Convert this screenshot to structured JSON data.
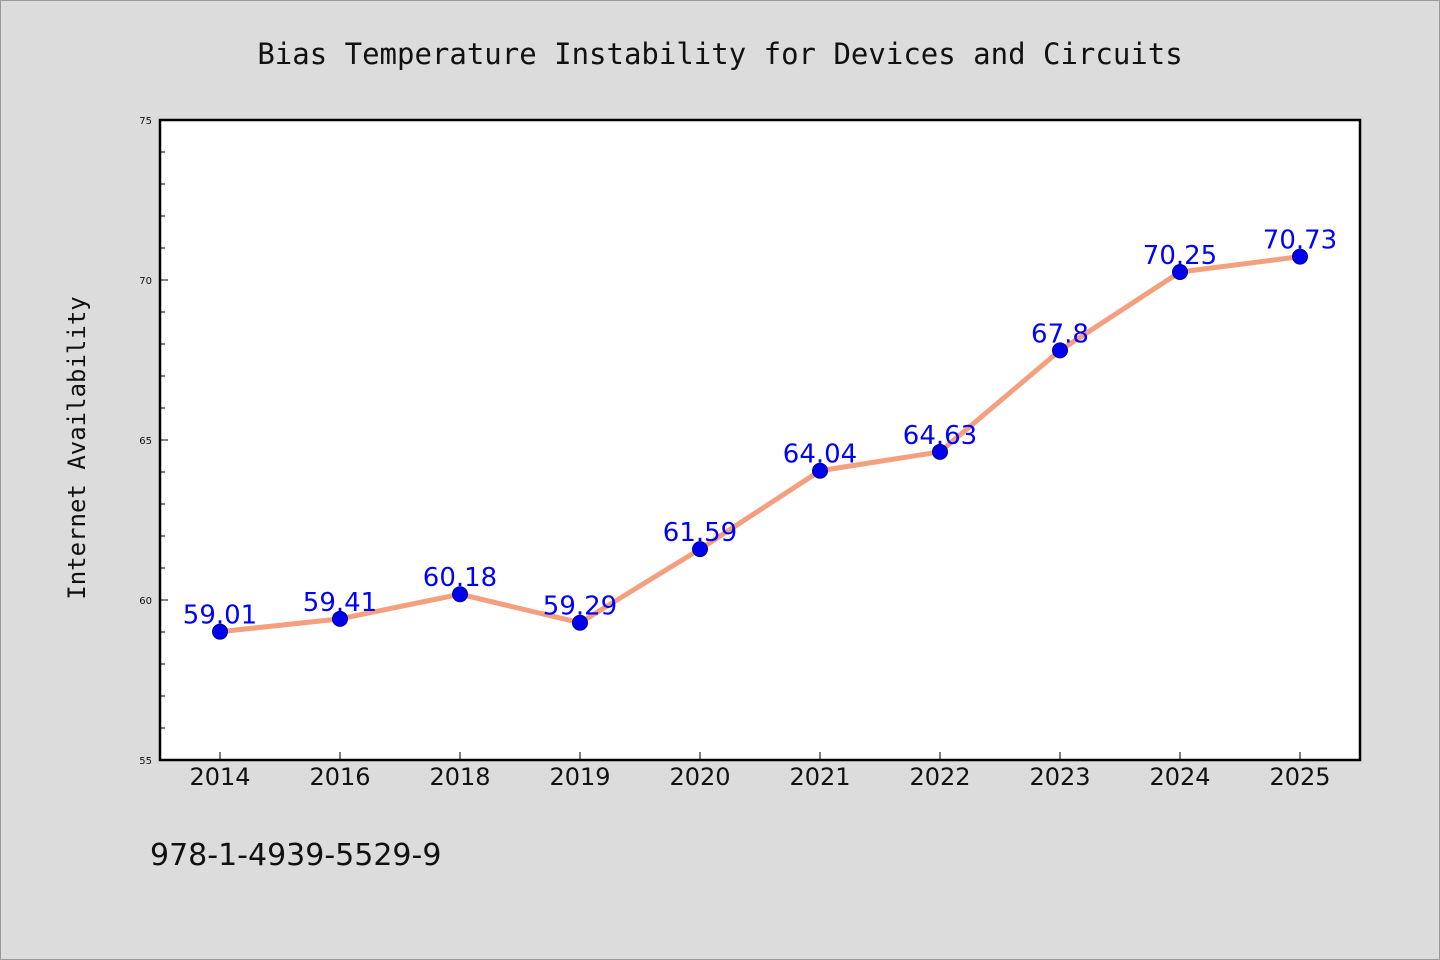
{
  "colors": {
    "background": "#dcdcdc",
    "plot_background": "#ffffff",
    "line": "#f4a07e",
    "marker": "#0000ee",
    "marker_edge": "#00008b",
    "data_label": "#0000ff",
    "axis": "#000000"
  },
  "footer_text": "978-1-4939-5529-9",
  "chart_data": {
    "type": "line",
    "title": "Bias Temperature Instability for Devices and Circuits",
    "xlabel": "",
    "ylabel": "Internet Availability",
    "categories": [
      "2014",
      "2016",
      "2018",
      "2019",
      "2020",
      "2021",
      "2022",
      "2023",
      "2024",
      "2025"
    ],
    "values": [
      59.01,
      59.41,
      60.18,
      59.29,
      61.59,
      64.04,
      64.63,
      67.8,
      70.25,
      70.73
    ],
    "data_labels": [
      "59.01",
      "59.41",
      "60.18",
      "59.29",
      "61.59",
      "64.04",
      "64.63",
      "67.8",
      "70.25",
      "70.73"
    ],
    "ylim": [
      55,
      75
    ],
    "yticks": [
      55,
      60,
      65,
      70,
      75
    ],
    "y_minor_step": 1,
    "grid": false,
    "legend": "none"
  }
}
